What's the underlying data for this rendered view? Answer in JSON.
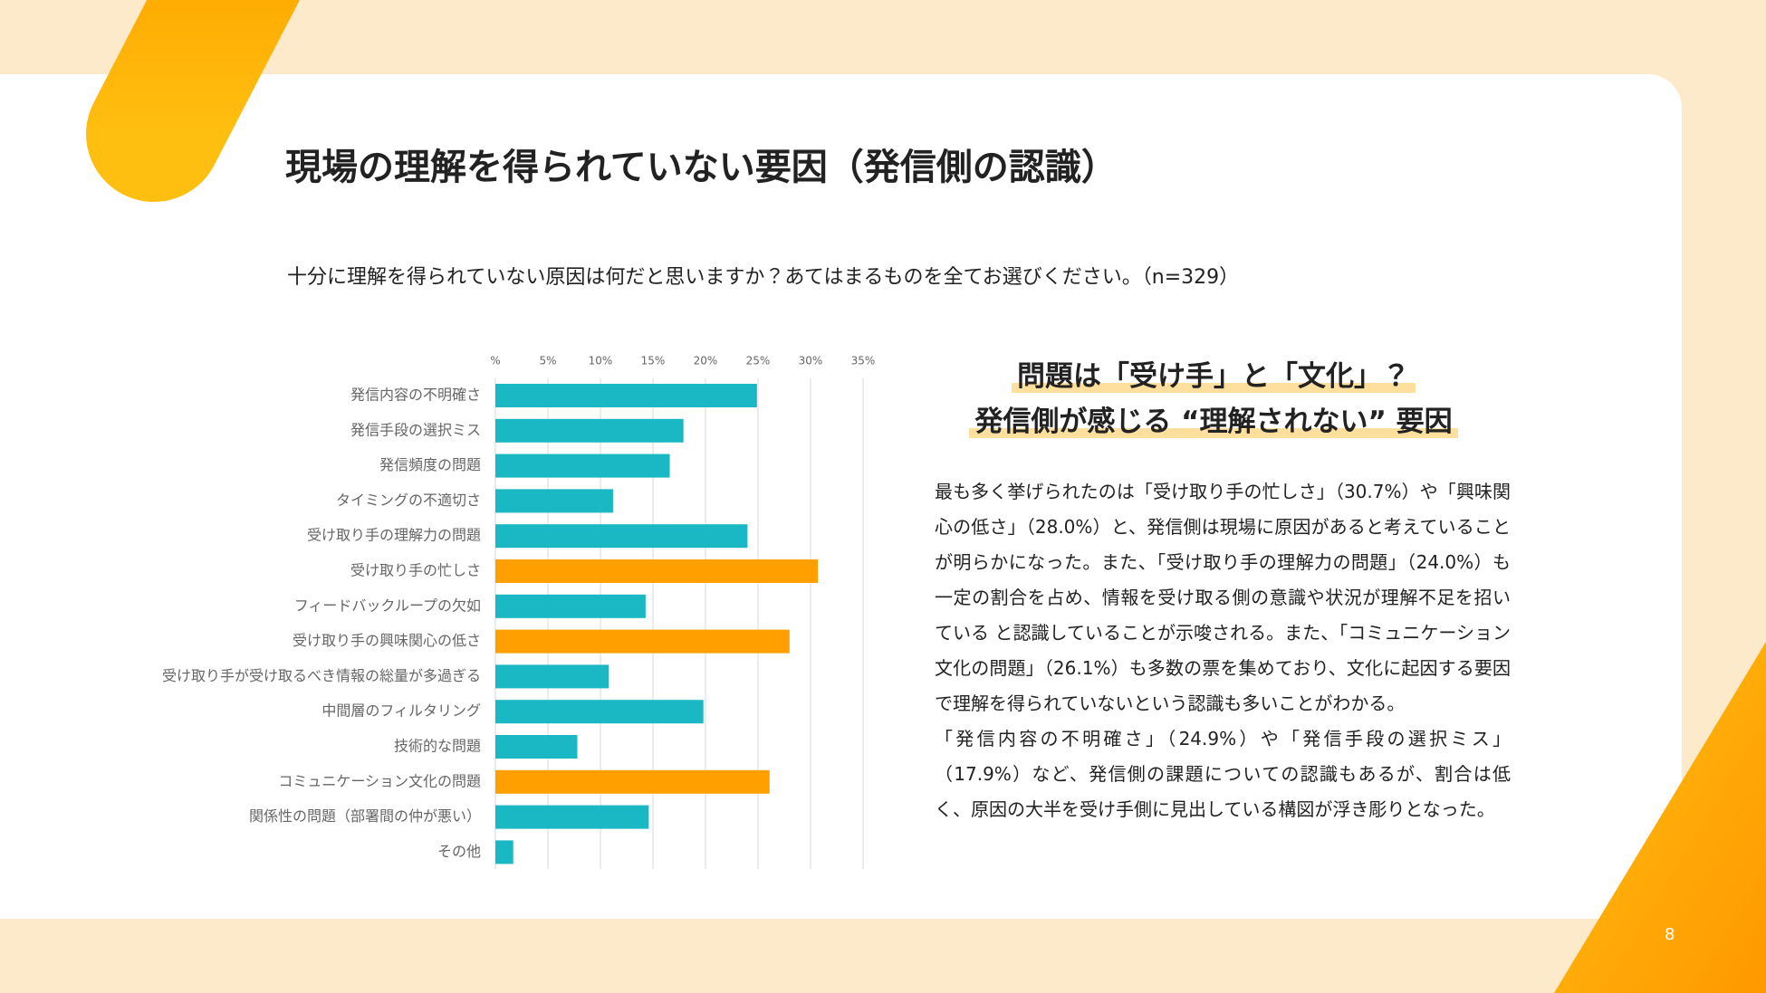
{
  "slide": {
    "title": "現場の理解を得られていない要因（発信側の認識）",
    "question": "十分に理解を得られていない原因は何だと思いますか？あてはまるものを全てお選びください。（n=329）",
    "heading": [
      "問題は「受け手」と「文化」？",
      "発信側が感じる “理解されない” 要因"
    ],
    "body": [
      "最も多く挙げられたのは「受け取り手の忙しさ」（30.7%）や「興味関心の低さ」（28.0%）と、発信側は現場に原因があると考えていることが明らかになった。また、「受け取り手の理解力の問題」（24.0%）も一定の割合を占め、情報を受け取る側の意識や状況が理解不足を招いている と認識していることが示唆される。また、「コミュニケーション文化の問題」（26.1%）も多数の票を集めており、文化に起因する要因で理解を得られていないという認識も多いことがわかる。",
      "「発信内容の不明確さ」（24.9%）や「発信手段の選択ミス」（17.9%）など、発信側の課題についての認識もあるが、割合は低く、原因の大半を受け手側に見出している構図が浮き彫りとなった。"
    ],
    "page_number": "8"
  },
  "chart_data": {
    "type": "hbar",
    "categories": [
      "発信内容の不明確さ",
      "発信手段の選択ミス",
      "発信頻度の問題",
      "タイミングの不適切さ",
      "受け取り手の理解力の問題",
      "受け取り手の忙しさ",
      "フィードバックループの欠如",
      "受け取り手の興味関心の低さ",
      "受け取り手が受け取るべき情報の総量が多過ぎる",
      "中間層のフィルタリング",
      "技術的な問題",
      "コミュニケーション文化の問題",
      "関係性の問題（部署間の仲が悪い）",
      "その他"
    ],
    "values": [
      24.9,
      17.9,
      16.6,
      11.2,
      24.0,
      30.7,
      14.3,
      28.0,
      10.8,
      19.8,
      7.8,
      26.1,
      14.6,
      1.7
    ],
    "colors": [
      "#1ab8c4",
      "#1ab8c4",
      "#1ab8c4",
      "#1ab8c4",
      "#1ab8c4",
      "#ffa000",
      "#1ab8c4",
      "#ffa000",
      "#1ab8c4",
      "#1ab8c4",
      "#1ab8c4",
      "#ffa000",
      "#1ab8c4",
      "#1ab8c4"
    ],
    "xlim": [
      0,
      35
    ],
    "xticks": [
      {
        "value": 0,
        "label": "%"
      },
      {
        "value": 5,
        "label": "5%"
      },
      {
        "value": 10,
        "label": "10%"
      },
      {
        "value": 15,
        "label": "15%"
      },
      {
        "value": 20,
        "label": "20%"
      },
      {
        "value": 25,
        "label": "25%"
      },
      {
        "value": 30,
        "label": "30%"
      },
      {
        "value": 35,
        "label": "35%"
      }
    ],
    "grid": true
  }
}
